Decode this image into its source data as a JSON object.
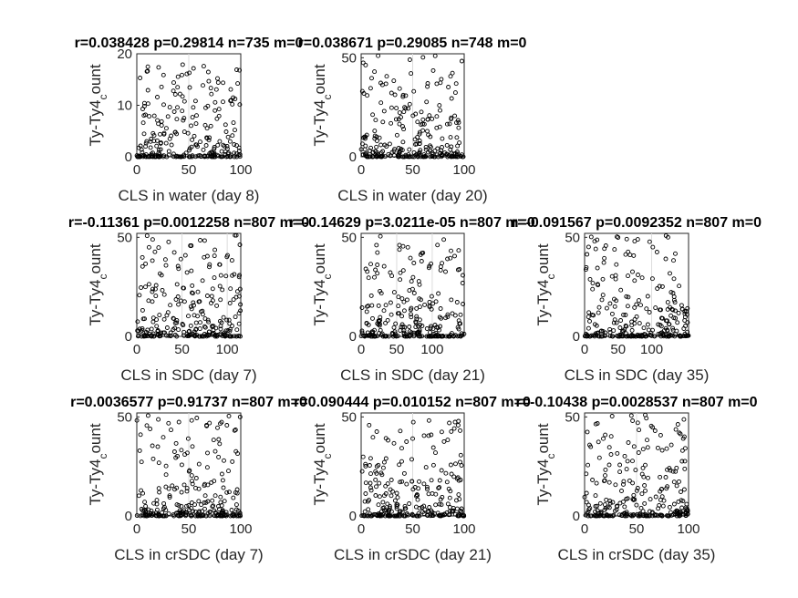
{
  "chart_data": [
    {
      "type": "scatter",
      "title": "r=0.038428 p=0.29814  n=735  m=0",
      "xlabel": "CLS in water (day 8)",
      "ylabel": "Ty-Ty4_count",
      "xlim": [
        0,
        100
      ],
      "ylim": [
        0,
        20
      ],
      "xticks": [
        0,
        50,
        100
      ],
      "yticks": [
        0,
        10,
        20
      ],
      "x_grid": [
        50
      ],
      "n": 735,
      "x_range": [
        0,
        100
      ],
      "y_range": [
        0,
        18
      ],
      "seed": 1,
      "grid": "x at 50"
    },
    {
      "type": "scatter",
      "title": "r=0.038671 p=0.29085  n=748  m=0",
      "xlabel": "CLS in water (day 20)",
      "ylabel": "Ty-Ty4_count",
      "xlim": [
        0,
        100
      ],
      "ylim": [
        0,
        52
      ],
      "xticks": [
        0,
        50,
        100
      ],
      "yticks": [
        0,
        50
      ],
      "x_grid": [
        50
      ],
      "n": 748,
      "x_range": [
        0,
        100
      ],
      "y_range": [
        0,
        52
      ],
      "seed": 2,
      "grid": "x at 50"
    },
    {
      "type": "scatter",
      "title": "r=-0.11361 p=0.0012258  n=807  m=0",
      "xlabel": "CLS in SDC (day 7)",
      "ylabel": "Ty-Ty4_count",
      "xlim": [
        0,
        115
      ],
      "ylim": [
        0,
        52
      ],
      "xticks": [
        0,
        50,
        100
      ],
      "yticks": [
        0,
        50
      ],
      "x_grid": [
        50,
        100
      ],
      "n": 807,
      "x_range": [
        0,
        115
      ],
      "y_range": [
        0,
        51
      ],
      "seed": 3,
      "grid": "x at 50 and 100"
    },
    {
      "type": "scatter",
      "title": "r=-0.14629 p=3.0211e-05  n=807  m=0",
      "xlabel": "CLS in SDC (day 21)",
      "ylabel": "Ty-Ty4_count",
      "xlim": [
        0,
        145
      ],
      "ylim": [
        0,
        52
      ],
      "xticks": [
        0,
        50,
        100
      ],
      "yticks": [
        0,
        50
      ],
      "x_grid": [
        50,
        100
      ],
      "n": 807,
      "x_range": [
        0,
        145
      ],
      "y_range": [
        0,
        51
      ],
      "seed": 4,
      "grid": "x at 50 and 100"
    },
    {
      "type": "scatter",
      "title": "r=-0.091567 p=0.0092352  n=807  m=0",
      "xlabel": "CLS in SDC (day 35)",
      "ylabel": "Ty-Ty4_count",
      "xlim": [
        0,
        155
      ],
      "ylim": [
        0,
        52
      ],
      "xticks": [
        0,
        50,
        100
      ],
      "yticks": [
        0,
        50
      ],
      "x_grid": [
        100
      ],
      "n": 807,
      "x_range": [
        0,
        155
      ],
      "y_range": [
        0,
        51
      ],
      "seed": 5,
      "grid": "x at 100"
    },
    {
      "type": "scatter",
      "title": "r=0.0036577 p=0.91737  n=807  m=0",
      "xlabel": "CLS in crSDC (day 7)",
      "ylabel": "Ty-Ty4_count",
      "xlim": [
        0,
        100
      ],
      "ylim": [
        0,
        52
      ],
      "xticks": [
        0,
        50,
        100
      ],
      "yticks": [
        0,
        50
      ],
      "x_grid": [
        50
      ],
      "n": 807,
      "x_range": [
        0,
        100
      ],
      "y_range": [
        0,
        51
      ],
      "seed": 6,
      "grid": "x at 50"
    },
    {
      "type": "scatter",
      "title": "r=0.090444 p=0.010152  n=807  m=0",
      "xlabel": "CLS in crSDC (day 21)",
      "ylabel": "Ty-Ty4_count",
      "xlim": [
        0,
        100
      ],
      "ylim": [
        0,
        52
      ],
      "xticks": [
        0,
        50,
        100
      ],
      "yticks": [
        0,
        50
      ],
      "x_grid": [
        50
      ],
      "n": 807,
      "x_range": [
        0,
        100
      ],
      "y_range": [
        0,
        51
      ],
      "seed": 7,
      "grid": "x at 50"
    },
    {
      "type": "scatter",
      "title": "r=-0.10438 p=0.0028537  n=807  m=0",
      "xlabel": "CLS in crSDC (day 35)",
      "ylabel": "Ty-Ty4_count",
      "xlim": [
        0,
        100
      ],
      "ylim": [
        0,
        52
      ],
      "xticks": [
        0,
        50,
        100
      ],
      "yticks": [
        0,
        50
      ],
      "x_grid": [
        50
      ],
      "n": 807,
      "x_range": [
        0,
        100
      ],
      "y_range": [
        0,
        51
      ],
      "seed": 8,
      "grid": "x at 50"
    }
  ]
}
